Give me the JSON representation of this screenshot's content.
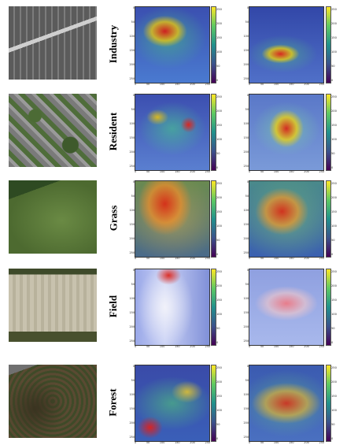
{
  "rows": [
    {
      "label": "Industry",
      "cbar1": [
        "250",
        "200",
        "150",
        "100",
        "50",
        "0"
      ],
      "cbar2": [
        "250",
        "200",
        "150",
        "100",
        "50",
        "0"
      ]
    },
    {
      "label": "Resident",
      "cbar1": [
        "250",
        "200",
        "150",
        "100",
        "50",
        "0"
      ],
      "cbar2": [
        "250",
        "200",
        "150",
        "100",
        "50",
        "0"
      ]
    },
    {
      "label": "Grass",
      "cbar1": [
        "250",
        "200",
        "150",
        "100",
        "50",
        "0"
      ],
      "cbar2": [
        "250",
        "200",
        "150",
        "100",
        "50",
        "0"
      ]
    },
    {
      "label": "Field",
      "cbar1": [
        "250",
        "200",
        "150",
        "100",
        "50",
        "0"
      ],
      "cbar2": [
        "250",
        "200",
        "150",
        "100",
        "50",
        "0"
      ]
    },
    {
      "label": "Forest",
      "cbar1": [
        "250",
        "200",
        "150",
        "100",
        "50",
        "0"
      ],
      "cbar2": [
        "250",
        "200",
        "150",
        "100",
        "50",
        "0"
      ]
    }
  ],
  "axis": {
    "x": [
      "0",
      "50",
      "100",
      "150",
      "200",
      "250"
    ],
    "y": [
      "0",
      "50",
      "100",
      "150",
      "200",
      "250"
    ]
  },
  "colormap": [
    "#440154",
    "#3b528b",
    "#21918c",
    "#5ec962",
    "#fde725"
  ]
}
